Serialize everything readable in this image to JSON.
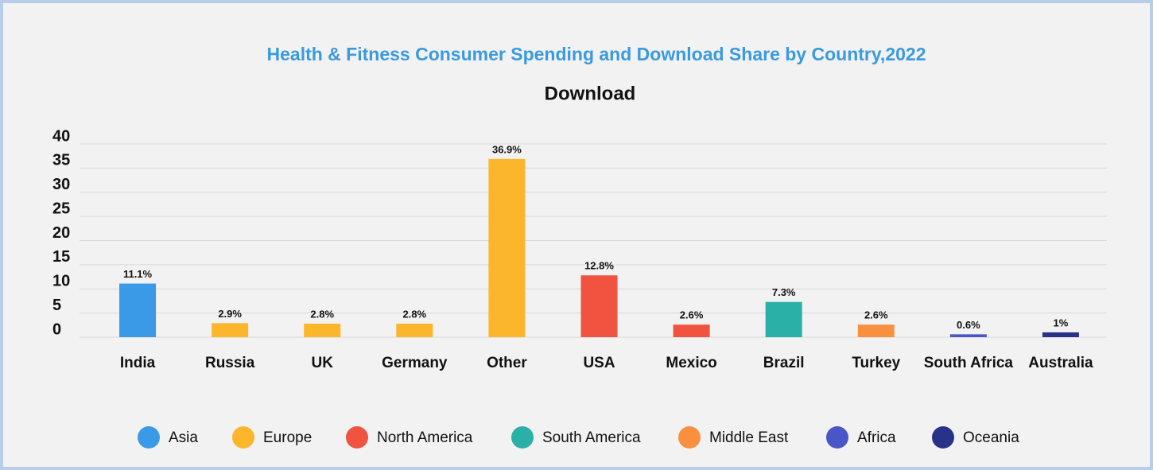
{
  "chart_data": {
    "type": "bar",
    "title": "Health & Fitness Consumer Spending and Download Share by Country,2022",
    "subtitle": "Download",
    "categories": [
      "India",
      "Russia",
      "UK",
      "Germany",
      "Other",
      "USA",
      "Mexico",
      "Brazil",
      "Turkey",
      "South Africa",
      "Australia"
    ],
    "values": [
      11.1,
      2.9,
      2.8,
      2.8,
      36.9,
      12.8,
      2.6,
      7.3,
      2.6,
      0.6,
      1
    ],
    "value_labels": [
      "11.1%",
      "2.9%",
      "2.8%",
      "2.8%",
      "36.9%",
      "12.8%",
      "2.6%",
      "7.3%",
      "2.6%",
      "0.6%",
      "1%"
    ],
    "colors": [
      "#3a9ae8",
      "#fbb62b",
      "#fbb62b",
      "#fbb62b",
      "#fbb62b",
      "#f05340",
      "#f05340",
      "#2bb0a8",
      "#f99040",
      "#4a55c8",
      "#283289"
    ],
    "legend": [
      {
        "name": "Asia",
        "color": "#3a9ae8"
      },
      {
        "name": "Europe",
        "color": "#fbb62b"
      },
      {
        "name": "North America",
        "color": "#f05340"
      },
      {
        "name": "South America",
        "color": "#2bb0a8"
      },
      {
        "name": "Middle East",
        "color": "#f99040"
      },
      {
        "name": "Africa",
        "color": "#4a55c8"
      },
      {
        "name": "Oceania",
        "color": "#283289"
      }
    ],
    "ylim": [
      0,
      40
    ],
    "yticks": [
      0,
      5,
      10,
      15,
      20,
      25,
      30,
      35,
      40
    ],
    "grid": true
  }
}
